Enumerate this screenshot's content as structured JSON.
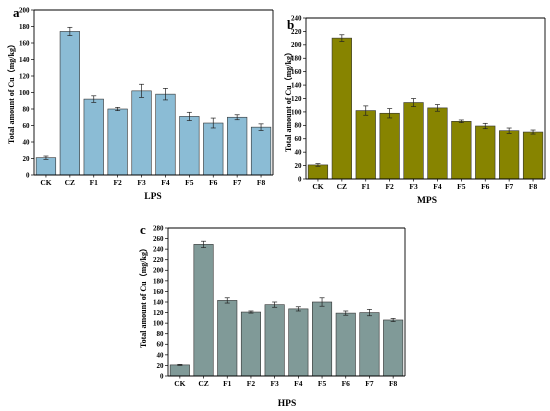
{
  "figure": {
    "panels": [
      {
        "letter": "a",
        "xtitle": "LPS",
        "ylabel": "Total amount of Cu（mg/kg）"
      },
      {
        "letter": "b",
        "xtitle": "MPS",
        "ylabel": "Total amount of Cu（mg/kg）"
      },
      {
        "letter": "c",
        "xtitle": "HPS",
        "ylabel": "Total amount of Cu（mg/kg）"
      }
    ]
  },
  "chart_data": [
    {
      "type": "bar",
      "panel": "a",
      "title": "",
      "xlabel": "LPS",
      "ylabel": "Total amount of Cu（mg/kg）",
      "categories": [
        "CK",
        "CZ",
        "F1",
        "F2",
        "F3",
        "F4",
        "F5",
        "F6",
        "F7",
        "F8"
      ],
      "values": [
        21,
        174,
        92,
        80,
        102,
        98,
        71,
        63,
        70,
        58
      ],
      "errors": [
        2,
        5,
        4,
        2,
        8,
        7,
        5,
        6,
        3,
        4
      ],
      "ylim": [
        0,
        200
      ],
      "yticks": [
        0,
        20,
        40,
        60,
        80,
        100,
        120,
        140,
        160,
        180,
        200
      ],
      "color": "#8bbcd5",
      "grid": false
    },
    {
      "type": "bar",
      "panel": "b",
      "title": "",
      "xlabel": "MPS",
      "ylabel": "Total amount of Cu（mg/kg）",
      "categories": [
        "CK",
        "CZ",
        "F1",
        "F2",
        "F3",
        "F4",
        "F5",
        "F6",
        "F7",
        "F8"
      ],
      "values": [
        21,
        210,
        102,
        98,
        114,
        106,
        86,
        79,
        72,
        70
      ],
      "errors": [
        2,
        5,
        7,
        7,
        6,
        5,
        2,
        4,
        4,
        3
      ],
      "ylim": [
        0,
        240
      ],
      "yticks": [
        0,
        20,
        40,
        60,
        80,
        100,
        120,
        140,
        160,
        180,
        200,
        220,
        240
      ],
      "color": "#878400",
      "grid": false
    },
    {
      "type": "bar",
      "panel": "c",
      "title": "",
      "xlabel": "HPS",
      "ylabel": "Total amount of Cu（mg/kg）",
      "categories": [
        "CK",
        "CZ",
        "F1",
        "F2",
        "F3",
        "F4",
        "F5",
        "F6",
        "F7",
        "F8"
      ],
      "values": [
        21,
        249,
        143,
        121,
        135,
        127,
        140,
        119,
        120,
        106
      ],
      "errors": [
        1,
        6,
        5,
        2,
        5,
        4,
        8,
        4,
        6,
        3
      ],
      "ylim": [
        0,
        280
      ],
      "yticks": [
        0,
        20,
        40,
        60,
        80,
        100,
        120,
        140,
        160,
        180,
        200,
        220,
        240,
        260,
        280
      ],
      "color": "#809a98",
      "grid": false
    }
  ]
}
